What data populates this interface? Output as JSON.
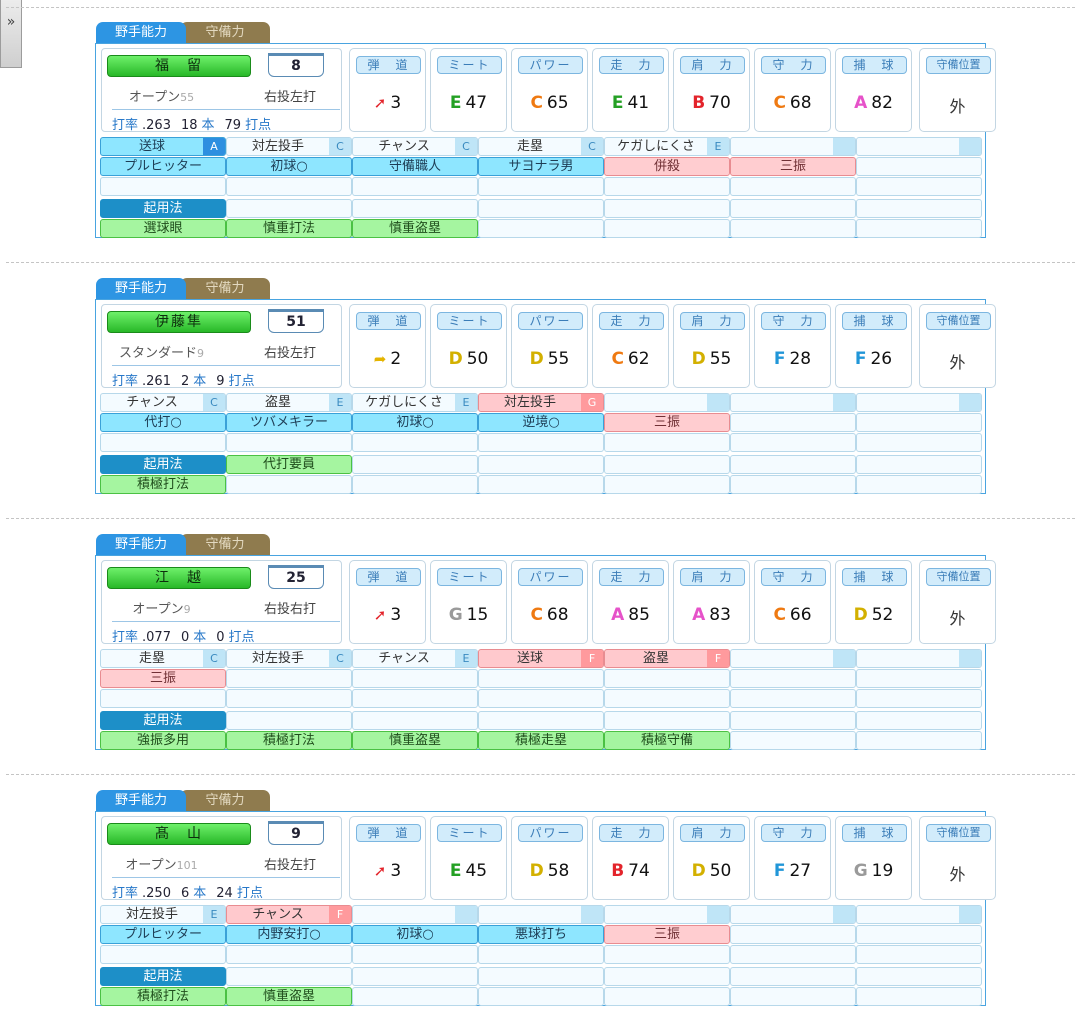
{
  "tabs": {
    "batting": "野手能力",
    "defense": "守備力"
  },
  "stat_labels": [
    "弾　道",
    "ミート",
    "パワー",
    "走　力",
    "肩　力",
    "守　力",
    "捕　球",
    "守備位置"
  ],
  "kiyo_label": "起用法",
  "colors": {
    "rank_A": "#e652c9",
    "rank_B": "#e3242b",
    "rank_C": "#ef7a12",
    "rank_D": "#d3b000",
    "rank_E": "#24a024",
    "rank_F": "#2196d8",
    "rank_G": "#9a9a9a"
  },
  "players": [
    {
      "name": "福　留",
      "number": "8",
      "type": "オープン",
      "type_num": "55",
      "hand": "右投左打",
      "avg_label": "打率",
      "avg": ".263",
      "hr": "18",
      "hr_unit": "本",
      "rbi": "79",
      "rbi_unit": "打点",
      "trajectory": "3",
      "trajectory_icon": "arrow-red-icon",
      "stats": [
        {
          "grade": "E",
          "value": "47"
        },
        {
          "grade": "C",
          "value": "65"
        },
        {
          "grade": "E",
          "value": "41"
        },
        {
          "grade": "B",
          "value": "70"
        },
        {
          "grade": "C",
          "value": "68"
        },
        {
          "grade": "A",
          "value": "82"
        }
      ],
      "position": "外",
      "row1": [
        {
          "t": "送球",
          "g": "A",
          "style": "cyan blueg"
        },
        {
          "t": "対左投手",
          "g": "C"
        },
        {
          "t": "チャンス",
          "g": "C"
        },
        {
          "t": "走塁",
          "g": "C"
        },
        {
          "t": "ケガしにくさ",
          "g": "E"
        },
        {
          "t": "",
          "g": " "
        },
        {
          "t": "",
          "g": " "
        }
      ],
      "row2": [
        {
          "t": "プルヒッター",
          "style": "cyan"
        },
        {
          "t": "初球○",
          "style": "cyan"
        },
        {
          "t": "守備職人",
          "style": "cyan"
        },
        {
          "t": "サヨナラ男",
          "style": "cyan"
        },
        {
          "t": "併殺",
          "style": "pink"
        },
        {
          "t": "三振",
          "style": "pink"
        },
        {
          "t": ""
        }
      ],
      "kiyo": [
        {
          "t": "",
          "style": ""
        },
        {
          "t": ""
        },
        {
          "t": ""
        },
        {
          "t": ""
        },
        {
          "t": ""
        },
        {
          "t": ""
        }
      ],
      "row5": [
        {
          "t": "選球眼",
          "style": "green"
        },
        {
          "t": "慎重打法",
          "style": "green"
        },
        {
          "t": "慎重盗塁",
          "style": "green"
        },
        {
          "t": ""
        },
        {
          "t": ""
        },
        {
          "t": ""
        },
        {
          "t": ""
        }
      ]
    },
    {
      "name": "伊藤隼",
      "number": "51",
      "type": "スタンダード",
      "type_num": "9",
      "hand": "右投左打",
      "avg_label": "打率",
      "avg": ".261",
      "hr": "2",
      "hr_unit": "本",
      "rbi": "9",
      "rbi_unit": "打点",
      "trajectory": "2",
      "trajectory_icon": "arrow-yellow-icon",
      "stats": [
        {
          "grade": "D",
          "value": "50"
        },
        {
          "grade": "D",
          "value": "55"
        },
        {
          "grade": "C",
          "value": "62"
        },
        {
          "grade": "D",
          "value": "55"
        },
        {
          "grade": "F",
          "value": "28"
        },
        {
          "grade": "F",
          "value": "26"
        }
      ],
      "position": "外",
      "row1": [
        {
          "t": "チャンス",
          "g": "C"
        },
        {
          "t": "盗塁",
          "g": "E"
        },
        {
          "t": "ケガしにくさ",
          "g": "E"
        },
        {
          "t": "対左投手",
          "g": "G",
          "style": "pinkhead"
        },
        {
          "t": "",
          "g": " "
        },
        {
          "t": "",
          "g": " "
        },
        {
          "t": "",
          "g": " "
        }
      ],
      "row2": [
        {
          "t": "代打○",
          "style": "cyan"
        },
        {
          "t": "ツバメキラー",
          "style": "cyan"
        },
        {
          "t": "初球○",
          "style": "cyan"
        },
        {
          "t": "逆境○",
          "style": "cyan"
        },
        {
          "t": "三振",
          "style": "pink"
        },
        {
          "t": ""
        },
        {
          "t": ""
        }
      ],
      "kiyo": [
        {
          "t": "代打要員",
          "style": "green"
        },
        {
          "t": ""
        },
        {
          "t": ""
        },
        {
          "t": ""
        },
        {
          "t": ""
        },
        {
          "t": ""
        }
      ],
      "row5": [
        {
          "t": "積極打法",
          "style": "green"
        },
        {
          "t": ""
        },
        {
          "t": ""
        },
        {
          "t": ""
        },
        {
          "t": ""
        },
        {
          "t": ""
        },
        {
          "t": ""
        }
      ]
    },
    {
      "name": "江　越",
      "number": "25",
      "type": "オープン",
      "type_num": "9",
      "hand": "右投右打",
      "avg_label": "打率",
      "avg": ".077",
      "hr": "0",
      "hr_unit": "本",
      "rbi": "0",
      "rbi_unit": "打点",
      "trajectory": "3",
      "trajectory_icon": "arrow-red-icon",
      "stats": [
        {
          "grade": "G",
          "value": "15"
        },
        {
          "grade": "C",
          "value": "68"
        },
        {
          "grade": "A",
          "value": "85"
        },
        {
          "grade": "A",
          "value": "83"
        },
        {
          "grade": "C",
          "value": "66"
        },
        {
          "grade": "D",
          "value": "52"
        }
      ],
      "position": "外",
      "row1": [
        {
          "t": "走塁",
          "g": "C"
        },
        {
          "t": "対左投手",
          "g": "C"
        },
        {
          "t": "チャンス",
          "g": "E"
        },
        {
          "t": "送球",
          "g": "F",
          "style": "pinkhead"
        },
        {
          "t": "盗塁",
          "g": "F",
          "style": "pinkhead"
        },
        {
          "t": "",
          "g": " "
        },
        {
          "t": "",
          "g": " "
        }
      ],
      "row2": [
        {
          "t": "三振",
          "style": "pink"
        },
        {
          "t": ""
        },
        {
          "t": ""
        },
        {
          "t": ""
        },
        {
          "t": ""
        },
        {
          "t": ""
        },
        {
          "t": ""
        }
      ],
      "kiyo": [
        {
          "t": ""
        },
        {
          "t": ""
        },
        {
          "t": ""
        },
        {
          "t": ""
        },
        {
          "t": ""
        },
        {
          "t": ""
        }
      ],
      "row5": [
        {
          "t": "強振多用",
          "style": "green"
        },
        {
          "t": "積極打法",
          "style": "green"
        },
        {
          "t": "慎重盗塁",
          "style": "green"
        },
        {
          "t": "積極走塁",
          "style": "green"
        },
        {
          "t": "積極守備",
          "style": "green"
        },
        {
          "t": ""
        },
        {
          "t": ""
        }
      ]
    },
    {
      "name": "髙　山",
      "number": "9",
      "type": "オープン",
      "type_num": "101",
      "hand": "右投左打",
      "avg_label": "打率",
      "avg": ".250",
      "hr": "6",
      "hr_unit": "本",
      "rbi": "24",
      "rbi_unit": "打点",
      "trajectory": "3",
      "trajectory_icon": "arrow-red-icon",
      "stats": [
        {
          "grade": "E",
          "value": "45"
        },
        {
          "grade": "D",
          "value": "58"
        },
        {
          "grade": "B",
          "value": "74"
        },
        {
          "grade": "D",
          "value": "50"
        },
        {
          "grade": "F",
          "value": "27"
        },
        {
          "grade": "G",
          "value": "19"
        }
      ],
      "position": "外",
      "row1": [
        {
          "t": "対左投手",
          "g": "E"
        },
        {
          "t": "チャンス",
          "g": "F",
          "style": "pinkhead"
        },
        {
          "t": "",
          "g": " "
        },
        {
          "t": "",
          "g": " "
        },
        {
          "t": "",
          "g": " "
        },
        {
          "t": "",
          "g": " "
        },
        {
          "t": "",
          "g": " "
        }
      ],
      "row2": [
        {
          "t": "プルヒッター",
          "style": "cyan"
        },
        {
          "t": "内野安打○",
          "style": "cyan"
        },
        {
          "t": "初球○",
          "style": "cyan"
        },
        {
          "t": "悪球打ち",
          "style": "cyan"
        },
        {
          "t": "三振",
          "style": "pink"
        },
        {
          "t": ""
        },
        {
          "t": ""
        }
      ],
      "kiyo": [
        {
          "t": ""
        },
        {
          "t": ""
        },
        {
          "t": ""
        },
        {
          "t": ""
        },
        {
          "t": ""
        },
        {
          "t": ""
        }
      ],
      "row5": [
        {
          "t": "積極打法",
          "style": "green"
        },
        {
          "t": "慎重盗塁",
          "style": "green"
        },
        {
          "t": ""
        },
        {
          "t": ""
        },
        {
          "t": ""
        },
        {
          "t": ""
        },
        {
          "t": ""
        }
      ]
    }
  ]
}
